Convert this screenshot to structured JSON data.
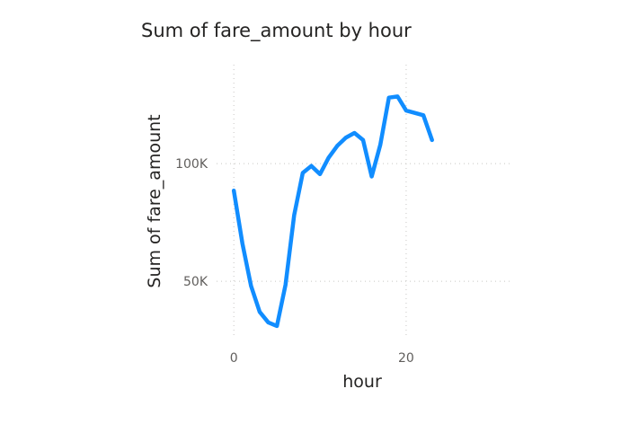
{
  "chart_data": {
    "type": "line",
    "title": "Sum of fare_amount by hour",
    "xlabel": "hour",
    "ylabel": "Sum of fare_amount",
    "x_ticks": [
      0,
      20
    ],
    "x_tick_labels": [
      "0",
      "20"
    ],
    "y_ticks": [
      50000,
      100000
    ],
    "y_tick_labels": [
      "50K",
      "100K"
    ],
    "xlim": [
      -2,
      32
    ],
    "ylim": [
      26000,
      142000
    ],
    "grid": true,
    "line_color": "#118dff",
    "series": [
      {
        "x": [
          0,
          1,
          2,
          3,
          4,
          5,
          6,
          7,
          8,
          9,
          10,
          11,
          12,
          13,
          14,
          15,
          16,
          17,
          18,
          19,
          20,
          21,
          22,
          23
        ],
        "values": [
          88500,
          66000,
          48000,
          37000,
          32500,
          31000,
          48500,
          78000,
          96000,
          99000,
          95500,
          102500,
          107500,
          111000,
          113000,
          110000,
          94500,
          108000,
          128000,
          128500,
          122500,
          121500,
          120500,
          110000
        ]
      }
    ]
  }
}
